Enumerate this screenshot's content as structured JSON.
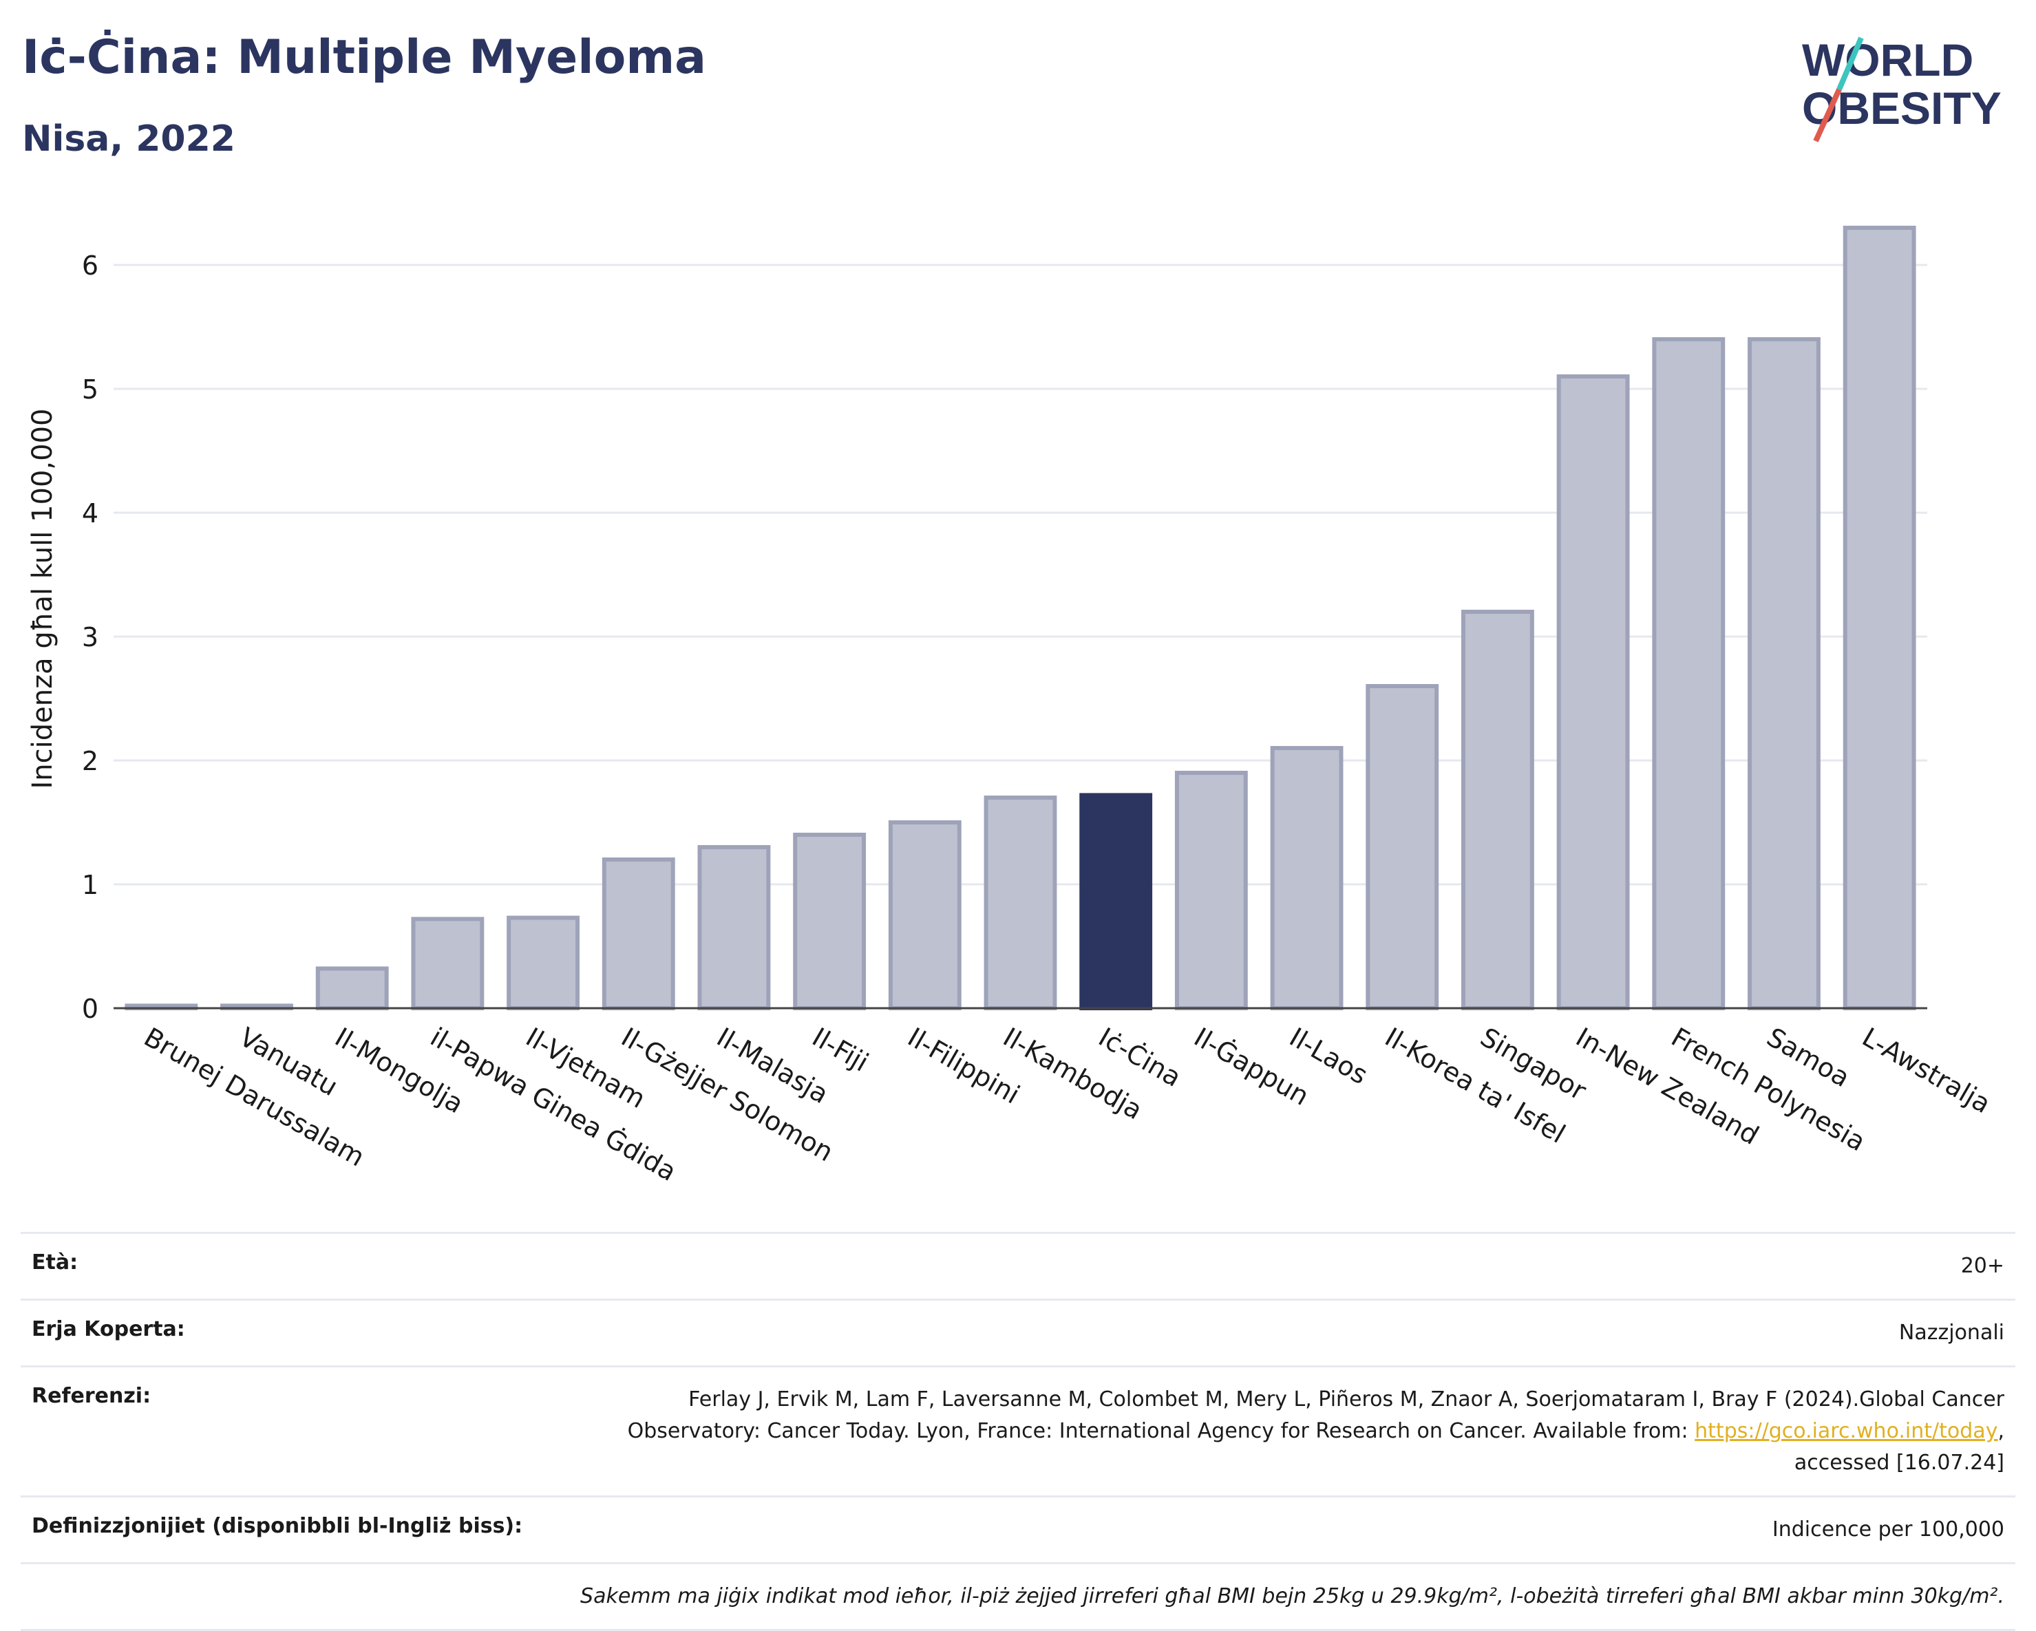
{
  "header": {
    "title": "Iċ-Ċina: Multiple Myeloma",
    "subtitle": "Nisa, 2022"
  },
  "logo": {
    "line1": "WORLD",
    "line2": "OBESITY",
    "accent": "#e05a4e",
    "accent2": "#3ec4c0",
    "text_color": "#2b3560"
  },
  "chart_data": {
    "type": "bar",
    "ylabel": "Incidenza għal kull 100,000",
    "xlabel": "",
    "ylim": [
      0,
      6.5
    ],
    "yticks": [
      0,
      1,
      2,
      3,
      4,
      5,
      6
    ],
    "grid": true,
    "highlight": "Iċ-Ċina",
    "colors": {
      "bar": "#bec1cf",
      "bar_edge": "#9ea3b9",
      "highlight": "#2b3560",
      "grid": "#e6e8ef"
    },
    "categories": [
      "Brunej Darussalam",
      "Vanuatu",
      "Il-Mongolja",
      "il-Papwa Ginea Ġdida",
      "Il-Vjetnam",
      "Il-Gżejjer Solomon",
      "Il-Malasja",
      "Il-Fiji",
      "Il-Filippini",
      "Il-Kambodja",
      "Iċ-Ċina",
      "Il-Ġappun",
      "Il-Laos",
      "Il-Korea ta' Isfel",
      "Singapor",
      "In-New Zealand",
      "French Polynesia",
      "Samoa",
      "L-Awstralja"
    ],
    "values": [
      0.02,
      0.02,
      0.32,
      0.72,
      0.73,
      1.2,
      1.3,
      1.4,
      1.5,
      1.7,
      1.72,
      1.9,
      2.1,
      2.6,
      3.2,
      5.1,
      5.4,
      5.4,
      6.3
    ]
  },
  "info": {
    "age_label": "Età:",
    "age_value": "20+",
    "coverage_label": "Erja Koperta:",
    "coverage_value": "Nazzjonali",
    "references_label": "Referenzi:",
    "references_line1": "Ferlay J, Ervik M, Lam F, Laversanne M, Colombet M, Mery L, Piñeros M, Znaor A, Soerjomataram I, Bray F (2024).Global Cancer",
    "references_line2": "Observatory: Cancer Today. Lyon, France: International Agency for Research on Cancer. Available from:",
    "references_link": "https://gco.iarc.who.int/today",
    "references_line3": "accessed [16.07.24]",
    "definitions_label": "Definizzjonijiet (disponibbli bl-Ingliż biss):",
    "definitions_value": "Indicence per 100,000",
    "note": "Sakemm ma jiġix indikat mod ieħor, il-piż żejjed jirreferi għal BMI bejn 25kg u 29.9kg/m², l-obeżità tirreferi għal BMI akbar minn 30kg/m²."
  }
}
